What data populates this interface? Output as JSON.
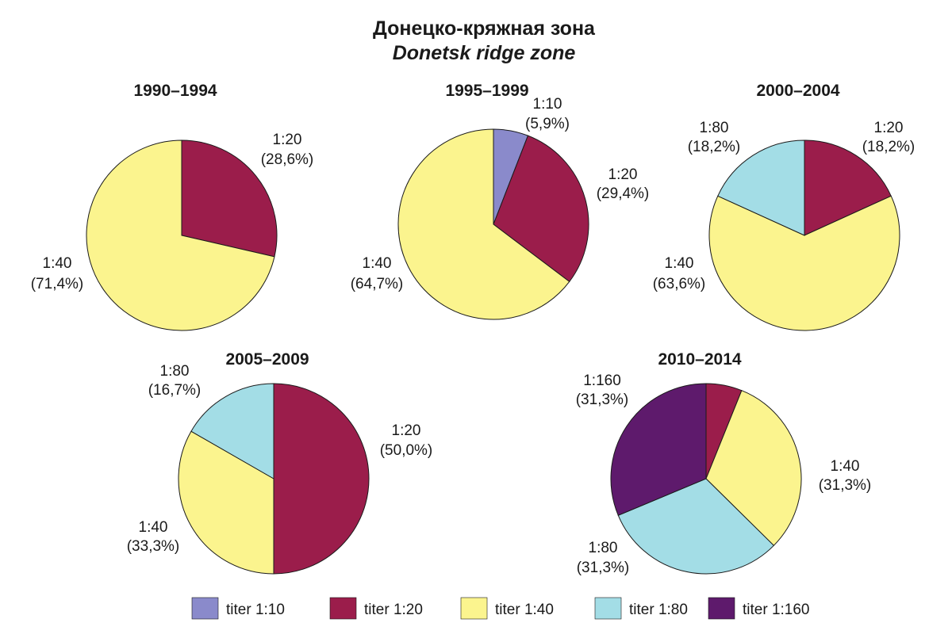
{
  "title": "Донецко-кряжная зона",
  "subtitle": "Donetsk ridge zone",
  "colors": {
    "1:10": "#8a8acb",
    "1:20": "#9b1d4b",
    "1:40": "#fbf48e",
    "1:80": "#a3dde6",
    "1:160": "#5e1a6c"
  },
  "legend": [
    {
      "key": "1:10",
      "label": "titer 1:10"
    },
    {
      "key": "1:20",
      "label": "titer 1:20"
    },
    {
      "key": "1:40",
      "label": "titer 1:40"
    },
    {
      "key": "1:80",
      "label": "titer 1:80"
    },
    {
      "key": "1:160",
      "label": "titer 1:160"
    }
  ],
  "chart_data": [
    {
      "type": "pie",
      "title": "1990–1994",
      "slices": [
        {
          "key": "1:20",
          "value": 28.6,
          "label": "1:20",
          "percent_label": "(28,6%)"
        },
        {
          "key": "1:40",
          "value": 71.4,
          "label": "1:40",
          "percent_label": "(71,4%)"
        }
      ]
    },
    {
      "type": "pie",
      "title": "1995–1999",
      "slices": [
        {
          "key": "1:10",
          "value": 5.9,
          "label": "1:10",
          "percent_label": "(5,9%)"
        },
        {
          "key": "1:20",
          "value": 29.4,
          "label": "1:20",
          "percent_label": "(29,4%)"
        },
        {
          "key": "1:40",
          "value": 64.7,
          "label": "1:40",
          "percent_label": "(64,7%)"
        }
      ]
    },
    {
      "type": "pie",
      "title": "2000–2004",
      "slices": [
        {
          "key": "1:20",
          "value": 18.2,
          "label": "1:20",
          "percent_label": "(18,2%)"
        },
        {
          "key": "1:40",
          "value": 63.6,
          "label": "1:40",
          "percent_label": "(63,6%)"
        },
        {
          "key": "1:80",
          "value": 18.2,
          "label": "1:80",
          "percent_label": "(18,2%)"
        }
      ]
    },
    {
      "type": "pie",
      "title": "2005–2009",
      "slices": [
        {
          "key": "1:20",
          "value": 50.0,
          "label": "1:20",
          "percent_label": "(50,0%)"
        },
        {
          "key": "1:40",
          "value": 33.3,
          "label": "1:40",
          "percent_label": "(33,3%)"
        },
        {
          "key": "1:80",
          "value": 16.7,
          "label": "1:80",
          "percent_label": "(16,7%)"
        }
      ]
    },
    {
      "type": "pie",
      "title": "2010–2014",
      "slices": [
        {
          "key": "1:20",
          "value": 6.1,
          "label": "",
          "percent_label": ""
        },
        {
          "key": "1:40",
          "value": 31.3,
          "label": "1:40",
          "percent_label": "(31,3%)"
        },
        {
          "key": "1:80",
          "value": 31.3,
          "label": "1:80",
          "percent_label": "(31,3%)"
        },
        {
          "key": "1:160",
          "value": 31.3,
          "label": "1:160",
          "percent_label": "(31,3%)"
        }
      ]
    }
  ]
}
